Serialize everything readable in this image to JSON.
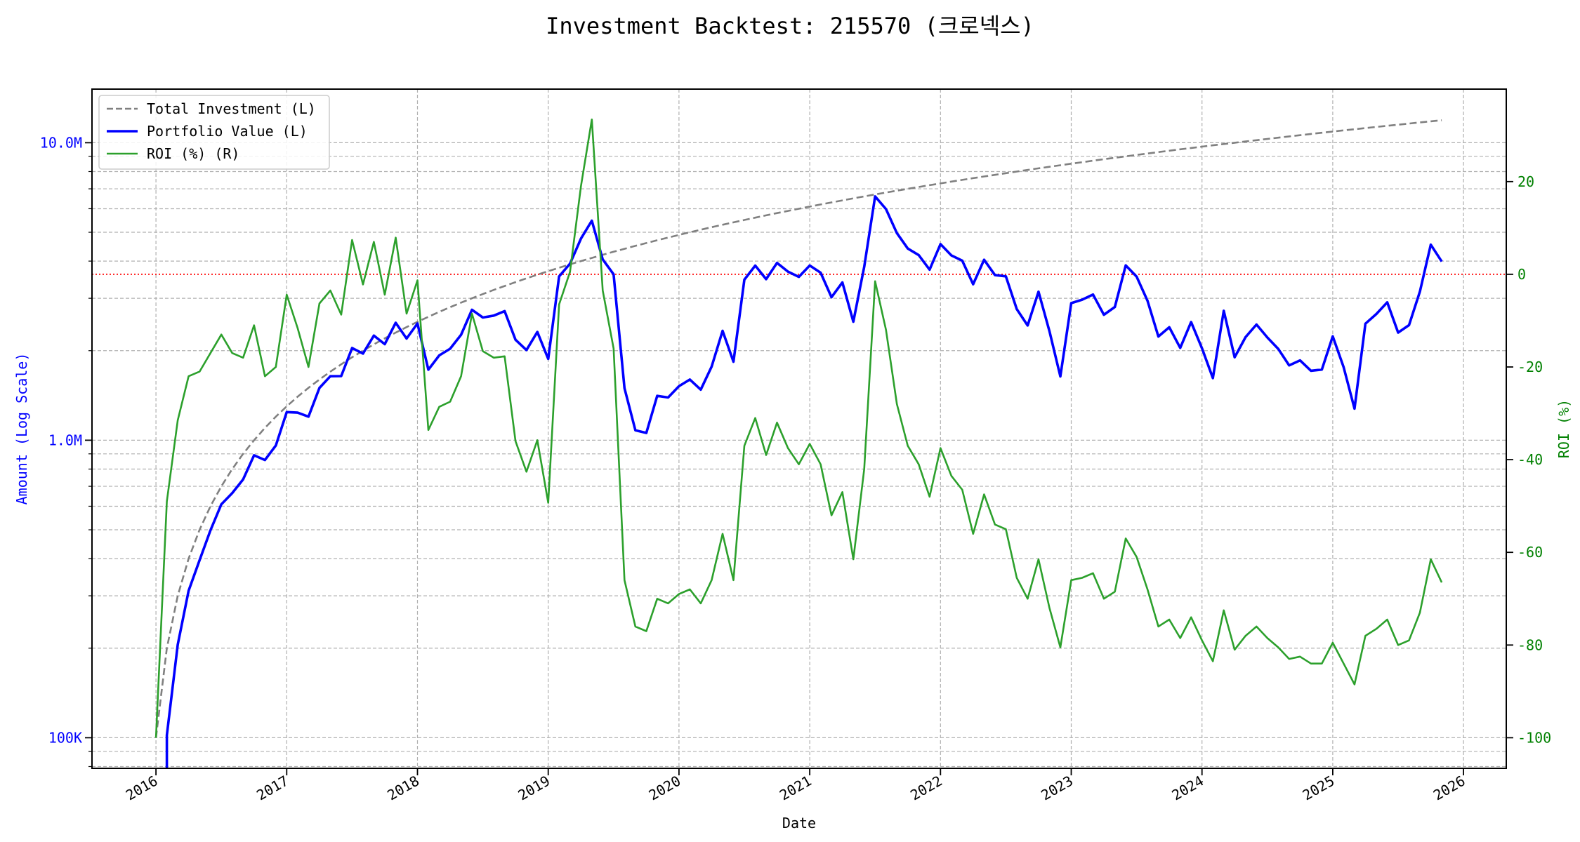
{
  "chart_data": {
    "type": "line",
    "title": "Investment Backtest: 215570 (크로넥스)",
    "xlabel": "Date",
    "ylabel_left": "Amount (Log Scale)",
    "ylabel_right": "ROI (%)",
    "x_tick_labels": [
      "2016",
      "2017",
      "2018",
      "2019",
      "2020",
      "2021",
      "2022",
      "2023",
      "2024",
      "2025",
      "2026"
    ],
    "y_left_scale": "log",
    "y_left_ticks": [
      100000,
      1000000,
      10000000
    ],
    "y_left_tick_labels": [
      "100K",
      "1.0M",
      "10.0M"
    ],
    "y_left_range": [
      79000,
      15100000
    ],
    "y_right_ticks": [
      -100,
      -80,
      -60,
      -40,
      -20,
      0,
      20
    ],
    "y_right_tick_labels": [
      "-100",
      "-80",
      "-60",
      "-40",
      "-20",
      "0",
      "20"
    ],
    "y_right_range": [
      -106.5,
      40
    ],
    "x_range": [
      "2015-07",
      "2026-04"
    ],
    "grid": true,
    "legend_position": "top-left",
    "reference_line": {
      "axis": "right",
      "value": 0,
      "color": "#ff0000",
      "style": "dotted"
    },
    "colors": {
      "total_investment": "#808080",
      "portfolio_value": "#0000ff",
      "roi": "#2ca02c",
      "left_axis": "#0000ff",
      "right_axis": "#008000"
    },
    "x": [
      "2016-01",
      "2016-02",
      "2016-03",
      "2016-04",
      "2016-05",
      "2016-06",
      "2016-07",
      "2016-08",
      "2016-09",
      "2016-10",
      "2016-11",
      "2016-12",
      "2017-01",
      "2017-02",
      "2017-03",
      "2017-04",
      "2017-05",
      "2017-06",
      "2017-07",
      "2017-08",
      "2017-09",
      "2017-10",
      "2017-11",
      "2017-12",
      "2018-01",
      "2018-02",
      "2018-03",
      "2018-04",
      "2018-05",
      "2018-06",
      "2018-07",
      "2018-08",
      "2018-09",
      "2018-10",
      "2018-11",
      "2018-12",
      "2019-01",
      "2019-02",
      "2019-03",
      "2019-04",
      "2019-05",
      "2019-06",
      "2019-07",
      "2019-08",
      "2019-09",
      "2019-10",
      "2019-11",
      "2019-12",
      "2020-01",
      "2020-02",
      "2020-03",
      "2020-04",
      "2020-05",
      "2020-06",
      "2020-07",
      "2020-08",
      "2020-09",
      "2020-10",
      "2020-11",
      "2020-12",
      "2021-01",
      "2021-02",
      "2021-03",
      "2021-04",
      "2021-05",
      "2021-06",
      "2021-07",
      "2021-08",
      "2021-09",
      "2021-10",
      "2021-11",
      "2021-12",
      "2022-01",
      "2022-02",
      "2022-03",
      "2022-04",
      "2022-05",
      "2022-06",
      "2022-07",
      "2022-08",
      "2022-09",
      "2022-10",
      "2022-11",
      "2022-12",
      "2023-01",
      "2023-02",
      "2023-03",
      "2023-04",
      "2023-05",
      "2023-06",
      "2023-07",
      "2023-08",
      "2023-09",
      "2023-10",
      "2023-11",
      "2023-12",
      "2024-01",
      "2024-02",
      "2024-03",
      "2024-04",
      "2024-05",
      "2024-06",
      "2024-07",
      "2024-08",
      "2024-09",
      "2024-10",
      "2024-11",
      "2024-12",
      "2025-01",
      "2025-02",
      "2025-03",
      "2025-04",
      "2025-05",
      "2025-06",
      "2025-07",
      "2025-08",
      "2025-09",
      "2025-10",
      "2025-11"
    ],
    "series": [
      {
        "name": "Total Investment (L)",
        "axis": "left",
        "style": "dashed",
        "values": [
          100000,
          200000,
          300000,
          400000,
          500000,
          600000,
          700000,
          800000,
          900000,
          1000000,
          1100000,
          1200000,
          1300000,
          1400000,
          1500000,
          1600000,
          1700000,
          1800000,
          1900000,
          2000000,
          2100000,
          2200000,
          2300000,
          2400000,
          2500000,
          2600000,
          2700000,
          2800000,
          2900000,
          3000000,
          3100000,
          3200000,
          3300000,
          3400000,
          3500000,
          3600000,
          3700000,
          3800000,
          3900000,
          4000000,
          4100000,
          4200000,
          4300000,
          4400000,
          4500000,
          4600000,
          4700000,
          4800000,
          4900000,
          5000000,
          5100000,
          5200000,
          5300000,
          5400000,
          5500000,
          5600000,
          5700000,
          5800000,
          5900000,
          6000000,
          6100000,
          6200000,
          6300000,
          6400000,
          6500000,
          6600000,
          6700000,
          6800000,
          6900000,
          7000000,
          7100000,
          7200000,
          7300000,
          7400000,
          7500000,
          7600000,
          7700000,
          7800000,
          7900000,
          8000000,
          8100000,
          8200000,
          8300000,
          8400000,
          8500000,
          8600000,
          8700000,
          8800000,
          8900000,
          9000000,
          9100000,
          9200000,
          9300000,
          9400000,
          9500000,
          9600000,
          9700000,
          9800000,
          9900000,
          10000000,
          10100000,
          10200000,
          10300000,
          10400000,
          10500000,
          10600000,
          10700000,
          10800000,
          10900000,
          11000000,
          11100000,
          11200000,
          11300000,
          11400000,
          11500000,
          11600000,
          11700000,
          11800000,
          11900000
        ]
      },
      {
        "name": "Portfolio Value (L)",
        "axis": "left",
        "style": "solid",
        "values": [
          0,
          102000,
          205500,
          312000,
          395000,
          498000,
          609000,
          664000,
          738000,
          890000,
          858000,
          960000,
          1243000,
          1238000,
          1200000,
          1499000,
          1641000,
          1643000,
          2041000,
          1956000,
          2247000,
          2103000,
          2482000,
          2196000,
          2468000,
          1726000,
          1928000,
          2030000,
          2262000,
          2745000,
          2585000,
          2624000,
          2716000,
          2176000,
          2009000,
          2311000,
          1876000,
          3553000,
          3920000,
          4760000,
          5469000,
          4053000,
          3612000,
          1496000,
          1080000,
          1058000,
          1410000,
          1392000,
          1519000,
          1600000,
          1479000,
          1768000,
          2332000,
          1836000,
          3465000,
          3864000,
          3477000,
          3944000,
          3688000,
          3540000,
          3867000,
          3658000,
          3024000,
          3392000,
          2503000,
          3828000,
          6600000,
          5984000,
          4968000,
          4410000,
          4189000,
          3744000,
          4563000,
          4181000,
          4013000,
          3344000,
          4043000,
          3588000,
          3555000,
          2760000,
          2430000,
          3157000,
          2324000,
          1638000,
          2890000,
          2967000,
          3089000,
          2640000,
          2804000,
          3870000,
          3549000,
          2944000,
          2232000,
          2397000,
          2043000,
          2496000,
          2037000,
          1617000,
          2723000,
          1900000,
          2222000,
          2448000,
          2215000,
          2028000,
          1785000,
          1855000,
          1712000,
          1728000,
          2235000,
          1760000,
          1277000,
          2464000,
          2656000,
          2907000,
          2300000,
          2436000,
          3159000,
          4543000,
          3987000
        ]
      },
      {
        "name": "ROI (%) (R)",
        "axis": "right",
        "style": "solid",
        "values": [
          -100,
          -49,
          -31.5,
          -22,
          -21,
          -17,
          -13,
          -17,
          -18,
          -11,
          -22,
          -20,
          -4.4,
          -11.6,
          -20,
          -6.3,
          -3.5,
          -8.7,
          7.4,
          -2.2,
          7,
          -4.4,
          7.9,
          -8.5,
          -1.3,
          -33.6,
          -28.6,
          -27.5,
          -22,
          -8.5,
          -16.6,
          -18,
          -17.7,
          -36,
          -42.6,
          -35.8,
          -49.3,
          -6.5,
          0.5,
          19,
          33.4,
          -3.5,
          -16,
          -66,
          -76,
          -77,
          -70,
          -71,
          -69,
          -68,
          -71,
          -66,
          -56,
          -66,
          -37,
          -31,
          -39,
          -32,
          -37.5,
          -41,
          -36.6,
          -41,
          -52,
          -47,
          -61.5,
          -42,
          -1.5,
          -12,
          -28,
          -37,
          -41,
          -48,
          -37.5,
          -43.5,
          -46.5,
          -56,
          -47.5,
          -54,
          -55,
          -65.5,
          -70,
          -61.5,
          -72,
          -80.5,
          -66,
          -65.5,
          -64.5,
          -70,
          -68.5,
          -57,
          -61,
          -68,
          -76,
          -74.5,
          -78.5,
          -74,
          -79,
          -83.5,
          -72.5,
          -81,
          -78,
          -76,
          -78.5,
          -80.5,
          -83,
          -82.5,
          -84,
          -84,
          -79.5,
          -84,
          -88.5,
          -78,
          -76.5,
          -74.5,
          -80,
          -79,
          -73,
          -61.5,
          -66.5
        ]
      }
    ]
  }
}
